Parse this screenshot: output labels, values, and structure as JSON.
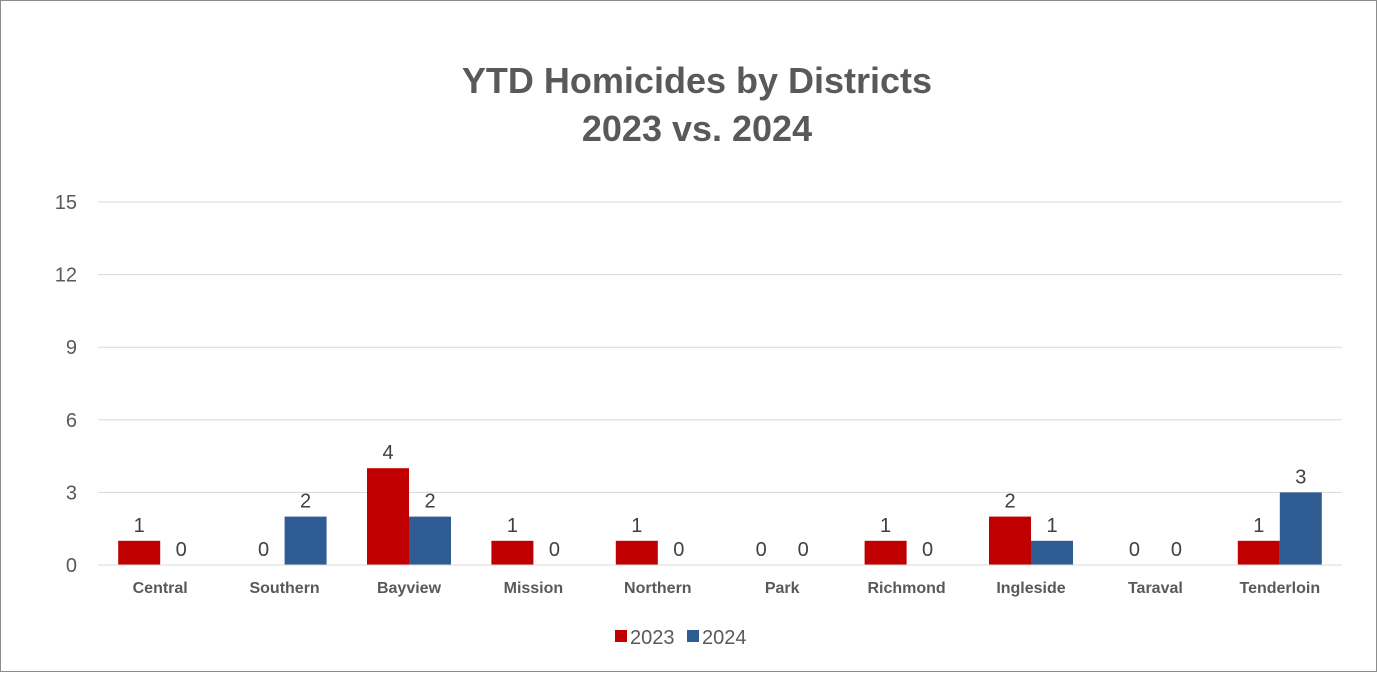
{
  "chart_data": {
    "type": "bar",
    "title": "YTD Homicides by Districts",
    "subtitle": "2023 vs. 2024",
    "xlabel": "",
    "ylabel": "",
    "ylim": [
      0,
      15
    ],
    "yticks": [
      0,
      3,
      6,
      9,
      12,
      15
    ],
    "grid": true,
    "legend_position": "bottom",
    "categories": [
      "Central",
      "Southern",
      "Bayview",
      "Mission",
      "Northern",
      "Park",
      "Richmond",
      "Ingleside",
      "Taraval",
      "Tenderloin"
    ],
    "series": [
      {
        "name": "2023",
        "color": "#c00000",
        "values": [
          1,
          0,
          4,
          1,
          1,
          0,
          1,
          2,
          0,
          1
        ]
      },
      {
        "name": "2024",
        "color": "#2e5c93",
        "values": [
          0,
          2,
          2,
          0,
          0,
          0,
          0,
          1,
          0,
          3
        ]
      }
    ]
  }
}
